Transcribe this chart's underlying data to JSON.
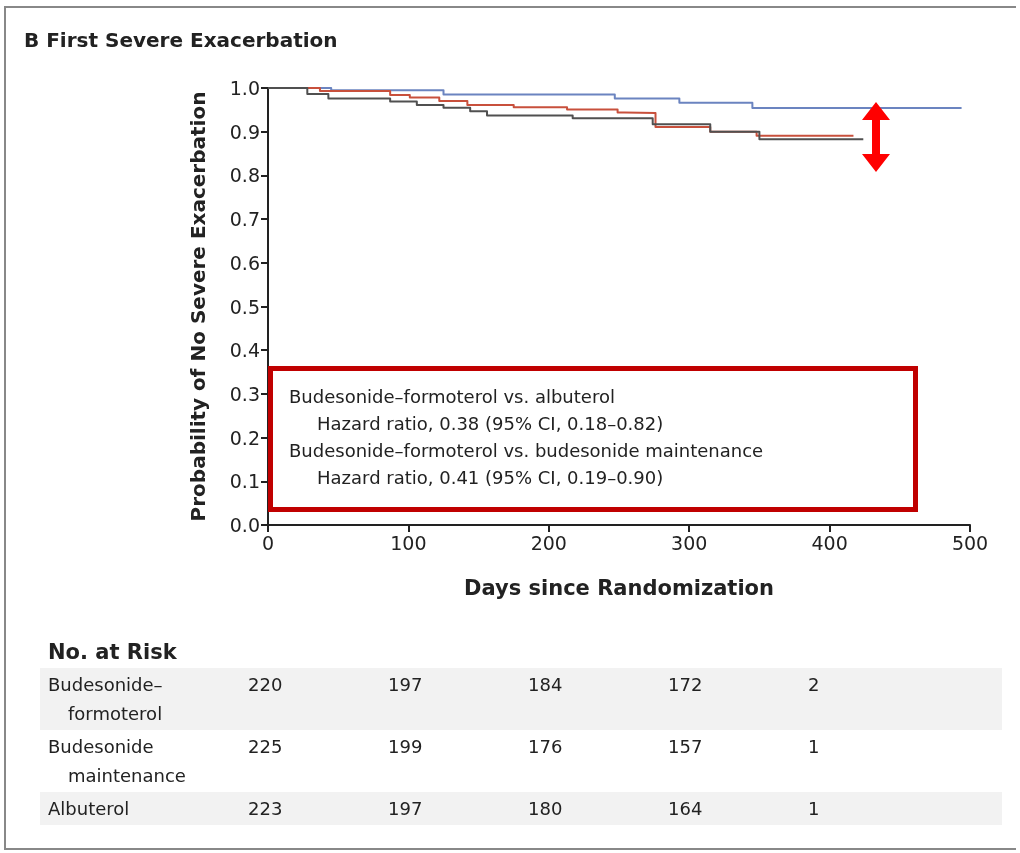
{
  "chart_data": {
    "type": "step",
    "title": "B  First Severe Exacerbation",
    "xlabel": "Days since Randomization",
    "ylabel": "Probability of No Severe Exacerbation",
    "xlim": [
      0,
      500
    ],
    "xticks": [
      0,
      100,
      200,
      300,
      400,
      500
    ],
    "ylim": [
      0,
      1
    ],
    "yticks": [
      {
        "value": 0,
        "label": "0.0"
      },
      0.1,
      0.2,
      0.3,
      0.4,
      0.5,
      0.6,
      0.7,
      0.8,
      0.9,
      {
        "value": 1,
        "label": "1.0"
      }
    ],
    "grid": false,
    "marker": "none",
    "line_style": "solid",
    "series": [
      {
        "color": "#6b84c0",
        "x": [
          0,
          45,
          125,
          247,
          293,
          345,
          494
        ],
        "values": [
          1.0,
          0.995,
          0.985,
          0.976,
          0.966,
          0.954,
          0.954
        ]
      },
      {
        "color": "#c8503c",
        "x": [
          0,
          37,
          87,
          101,
          122,
          142,
          175,
          213,
          249,
          254,
          276,
          315,
          348,
          417
        ],
        "values": [
          1.0,
          0.993,
          0.984,
          0.978,
          0.97,
          0.961,
          0.956,
          0.951,
          0.944,
          0.943,
          0.911,
          0.9,
          0.891,
          0.891
        ]
      },
      {
        "color": "#505050",
        "x": [
          0,
          28,
          43,
          87,
          106,
          125,
          144,
          156,
          217,
          274,
          315,
          350,
          424
        ],
        "values": [
          1.0,
          0.986,
          0.976,
          0.969,
          0.961,
          0.955,
          0.947,
          0.937,
          0.931,
          0.917,
          0.9,
          0.883,
          0.883
        ]
      }
    ],
    "annotations": [
      "Budesonide–formoterol vs. albuterol",
      "Hazard ratio, 0.38 (95% CI, 0.18–0.82)",
      "Budesonide–formoterol vs. budesonide maintenance",
      "Hazard ratio, 0.41 (95% CI, 0.19–0.90)",
      "No. at Risk",
      "Budesonide–formoterol",
      "220",
      "197",
      "184",
      "172",
      "2",
      "Budesonide maintenance",
      "225",
      "199",
      "176",
      "157",
      "1",
      "Albuterol",
      "223",
      "197",
      "180",
      "164",
      "1"
    ]
  }
}
